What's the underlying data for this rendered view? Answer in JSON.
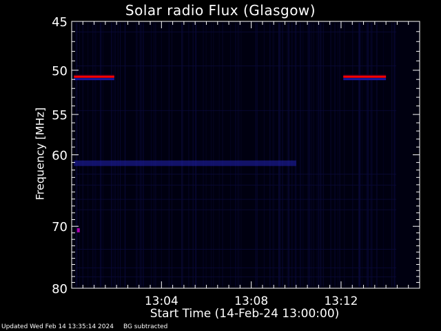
{
  "chart_data": {
    "type": "heatmap",
    "title": "Solar radio Flux (Glasgow)",
    "ylabel": "Frequency [MHz]",
    "xlabel": "Start Time (14-Feb-24 13:00:00)",
    "y_ticks": [
      "45",
      "50",
      "55",
      "60",
      "70",
      "80"
    ],
    "x_ticks": [
      "13:04",
      "13:08",
      "13:12"
    ],
    "ylim": [
      45,
      80
    ],
    "y_scale": "log",
    "xlim_minutes_after_start": [
      0,
      15.5
    ],
    "x_tick_values_minutes": [
      4,
      8,
      12
    ],
    "colormap": "black-blue-red",
    "features": [
      {
        "kind": "narrowband_emission",
        "frequency_mhz": 50.7,
        "t_start_min": 0.1,
        "t_end_min": 1.9,
        "color": "#ff0000"
      },
      {
        "kind": "narrowband_emission",
        "frequency_mhz": 50.7,
        "t_start_min": 12.1,
        "t_end_min": 14.0,
        "color": "#ff0000"
      },
      {
        "kind": "weak_band",
        "frequency_mhz": 61.1,
        "t_start_min": 0.1,
        "t_end_min": 10.0,
        "color": "#2020b0"
      },
      {
        "kind": "spot",
        "frequency_mhz": 70.6,
        "t_min": 0.3,
        "color": "#b000b0"
      }
    ]
  },
  "footer": {
    "updated": "Updated Wed Feb 14 13:35:14 2024",
    "note": "BG subtracted"
  },
  "colors": {
    "background": "#000000",
    "axes": "#ffffff",
    "plot_bg": "#000010",
    "noise": "#0a0a3a",
    "hot": "#ff0000"
  }
}
